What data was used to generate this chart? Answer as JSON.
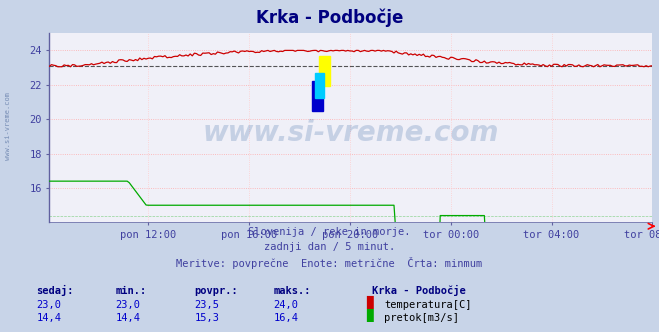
{
  "title": "Krka - Podbočje",
  "bg_color": "#c8d4e8",
  "plot_bg_color": "#f0f0f8",
  "title_color": "#000080",
  "title_fontsize": 12,
  "tick_color": "#4040a0",
  "watermark_text": "www.si-vreme.com",
  "watermark_color": "#3060a0",
  "subtitle_lines": [
    "Slovenija / reke in morje.",
    "zadnji dan / 5 minut.",
    "Meritve: povprečne  Enote: metrične  Črta: minmum"
  ],
  "x_tick_labels": [
    "pon 12:00",
    "pon 16:00",
    "pon 20:00",
    "tor 00:00",
    "tor 04:00",
    "tor 08:00"
  ],
  "x_tick_fractions": [
    0.167,
    0.333,
    0.5,
    0.667,
    0.833,
    1.0
  ],
  "n_points": 288,
  "temp_color": "#cc0000",
  "flow_color": "#00aa00",
  "minline_color": "#111111",
  "y_min": 14.0,
  "y_max": 25.0,
  "y_ticks": [
    16,
    18,
    20,
    22,
    24
  ],
  "temp_base": 23.1,
  "temp_peak": 24.0,
  "flow_high": 16.4,
  "flow_mid": 15.0,
  "flow_low": 14.4,
  "bottom_labels": {
    "headers": [
      "sedaj:",
      "min.:",
      "povpr.:",
      "maks.:"
    ],
    "row1": [
      "23,0",
      "23,0",
      "23,5",
      "24,0"
    ],
    "row2": [
      "14,4",
      "14,4",
      "15,3",
      "16,4"
    ],
    "station": "Krka - Podbočje",
    "legend1": "temperatura[C]",
    "legend2": "pretok[m3/s]",
    "color1": "#cc0000",
    "color2": "#00aa00",
    "text_color": "#0000cc",
    "bold_color": "#000080"
  },
  "left_label": "www.si-vreme.com"
}
